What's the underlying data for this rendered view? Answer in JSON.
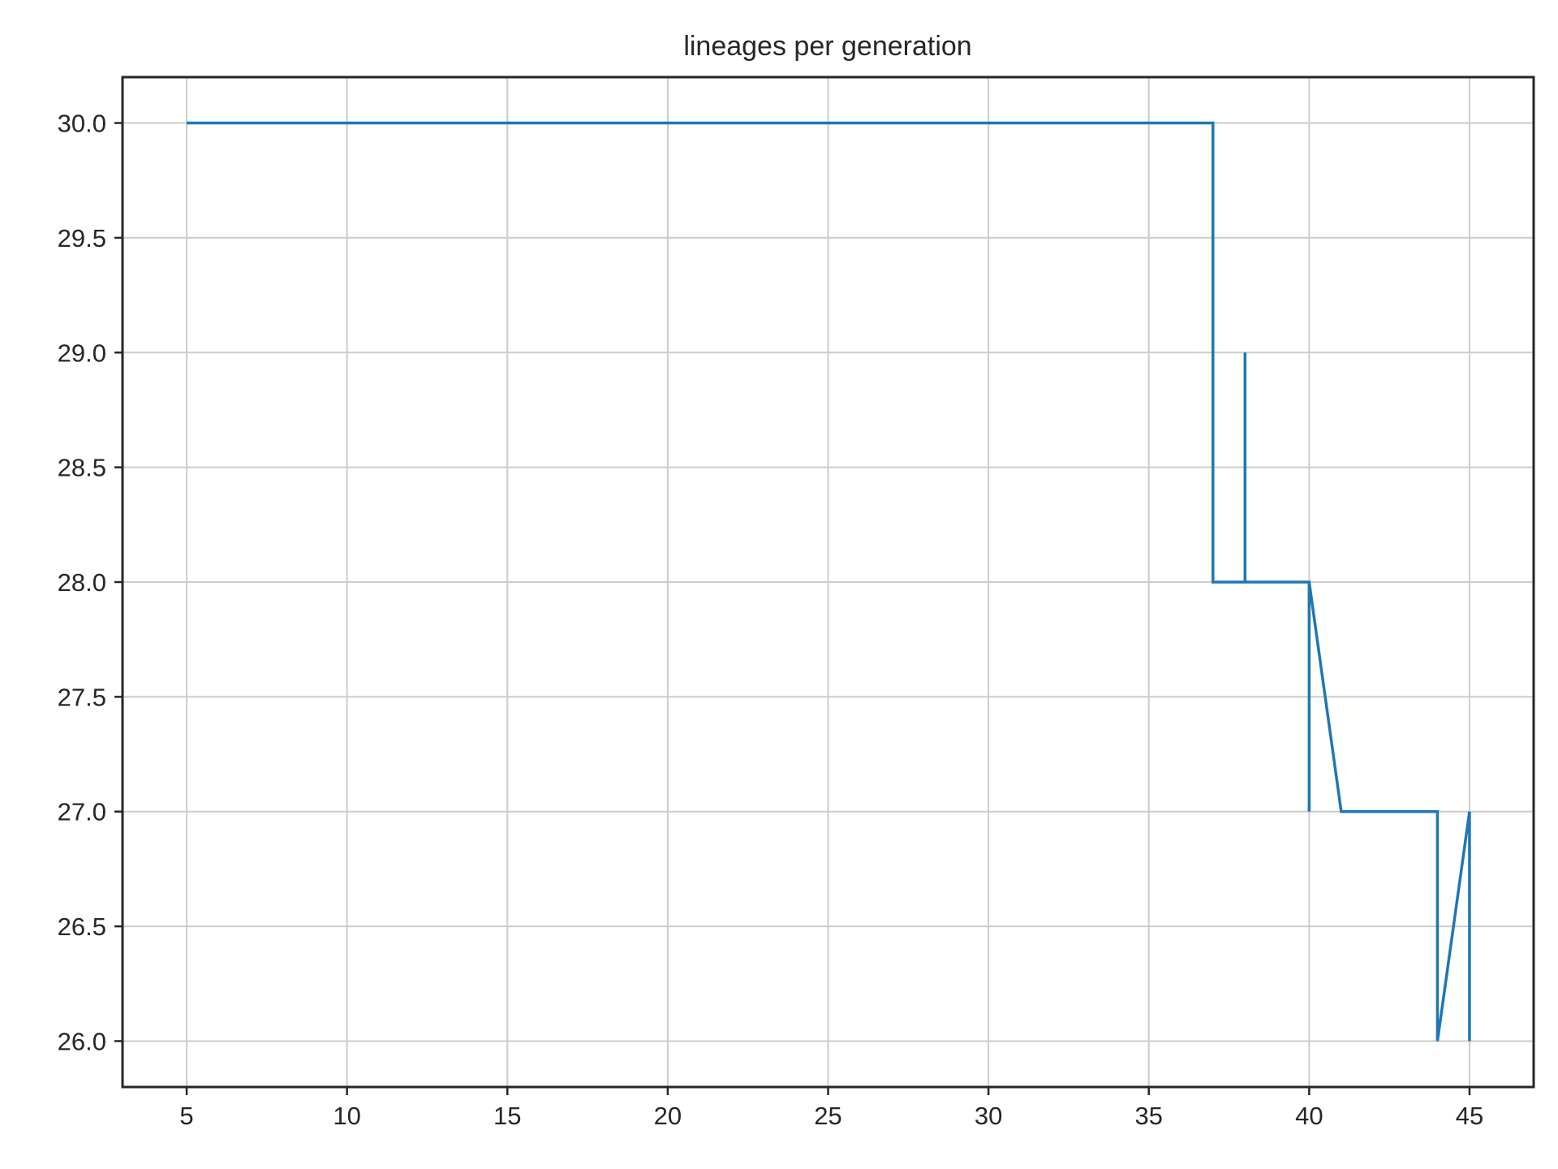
{
  "chart_data": {
    "type": "line",
    "title": "lineages per generation",
    "xlabel": "",
    "ylabel": "",
    "xlim": [
      3,
      47
    ],
    "ylim": [
      25.8,
      30.2
    ],
    "xticks": [
      5,
      10,
      15,
      20,
      25,
      30,
      35,
      40,
      45
    ],
    "yticks": [
      26.0,
      26.5,
      27.0,
      27.5,
      28.0,
      28.5,
      29.0,
      29.5,
      30.0
    ],
    "xtick_labels": [
      "5",
      "10",
      "15",
      "20",
      "25",
      "30",
      "35",
      "40",
      "45"
    ],
    "ytick_labels": [
      "26.0",
      "26.5",
      "27.0",
      "27.5",
      "28.0",
      "28.5",
      "29.0",
      "29.5",
      "30.0"
    ],
    "grid": true,
    "legend": "none",
    "series": [
      {
        "color": "#1f77b4",
        "x": [
          5,
          37,
          37,
          38,
          38,
          38,
          40,
          40,
          40,
          41,
          44,
          44,
          45,
          45
        ],
        "y": [
          30,
          30,
          28,
          28,
          29,
          28,
          28,
          27,
          28,
          27,
          27,
          26,
          27,
          26
        ]
      }
    ]
  }
}
